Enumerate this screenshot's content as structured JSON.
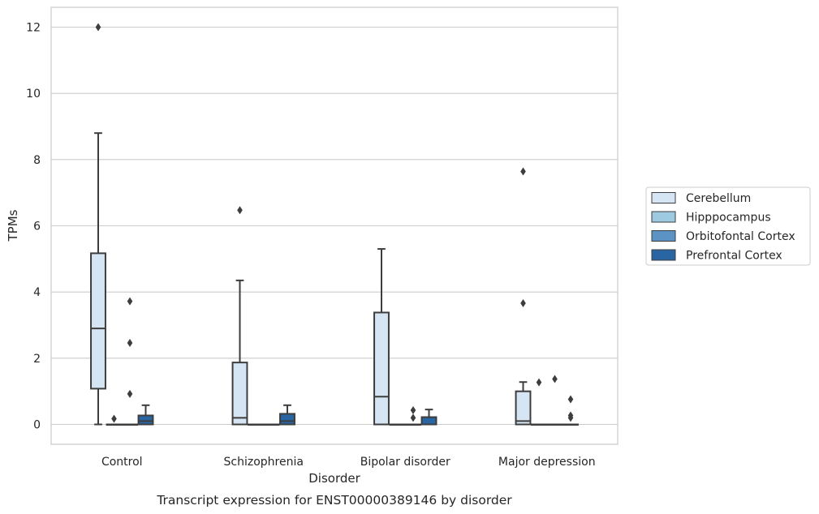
{
  "chart_data": {
    "type": "box",
    "caption": "Transcript expression for ENST00000389146 by disorder",
    "xlabel": "Disorder",
    "ylabel": "TPMs",
    "categories": [
      "Control",
      "Schizophrenia",
      "Bipolar disorder",
      "Major depression"
    ],
    "ylim": [
      -0.6,
      12.6
    ],
    "yticks": [
      0,
      2,
      4,
      6,
      8,
      10,
      12
    ],
    "grid": true,
    "legend_position": "right",
    "series": [
      {
        "name": "Cerebellum",
        "color": "#d6e5f3",
        "boxes": [
          {
            "min": 0,
            "q1": 1.08,
            "median": 2.9,
            "q3": 5.17,
            "max": 8.8,
            "outliers": [
              12.0
            ]
          },
          {
            "min": 0,
            "q1": 0,
            "median": 0.2,
            "q3": 1.87,
            "max": 4.35,
            "outliers": [
              6.47
            ]
          },
          {
            "min": 0,
            "q1": 0,
            "median": 0.84,
            "q3": 3.38,
            "max": 5.3,
            "outliers": []
          },
          {
            "min": 0,
            "q1": 0,
            "median": 0.1,
            "q3": 1.0,
            "max": 1.28,
            "outliers": [
              3.66,
              7.64
            ]
          }
        ]
      },
      {
        "name": "Hipppocampus",
        "color": "#9ecae1",
        "boxes": [
          {
            "min": 0,
            "q1": 0,
            "median": 0,
            "q3": 0,
            "max": 0,
            "outliers": [
              0.17
            ]
          },
          {
            "min": 0,
            "q1": 0,
            "median": 0,
            "q3": 0,
            "max": 0,
            "outliers": []
          },
          {
            "min": 0,
            "q1": 0,
            "median": 0,
            "q3": 0,
            "max": 0,
            "outliers": []
          },
          {
            "min": 0,
            "q1": 0,
            "median": 0,
            "q3": 0,
            "max": 0,
            "outliers": [
              1.27
            ]
          }
        ]
      },
      {
        "name": "Orbitofontal Cortex",
        "color": "#5b93c4",
        "boxes": [
          {
            "min": 0,
            "q1": 0,
            "median": 0,
            "q3": 0,
            "max": 0,
            "outliers": [
              0.92,
              2.46,
              3.72
            ]
          },
          {
            "min": 0,
            "q1": 0,
            "median": 0,
            "q3": 0,
            "max": 0,
            "outliers": []
          },
          {
            "min": 0,
            "q1": 0,
            "median": 0,
            "q3": 0,
            "max": 0,
            "outliers": [
              0.2,
              0.43
            ]
          },
          {
            "min": 0,
            "q1": 0,
            "median": 0,
            "q3": 0,
            "max": 0,
            "outliers": [
              1.37
            ]
          }
        ]
      },
      {
        "name": "Prefrontal Cortex",
        "color": "#2a65a3",
        "boxes": [
          {
            "min": 0,
            "q1": 0,
            "median": 0.1,
            "q3": 0.27,
            "max": 0.58,
            "outliers": []
          },
          {
            "min": 0,
            "q1": 0,
            "median": 0.1,
            "q3": 0.32,
            "max": 0.58,
            "outliers": []
          },
          {
            "min": 0,
            "q1": 0,
            "median": 0,
            "q3": 0.22,
            "max": 0.45,
            "outliers": []
          },
          {
            "min": 0,
            "q1": 0,
            "median": 0,
            "q3": 0,
            "max": 0,
            "outliers": [
              0.2,
              0.27,
              0.76
            ]
          }
        ]
      }
    ]
  }
}
